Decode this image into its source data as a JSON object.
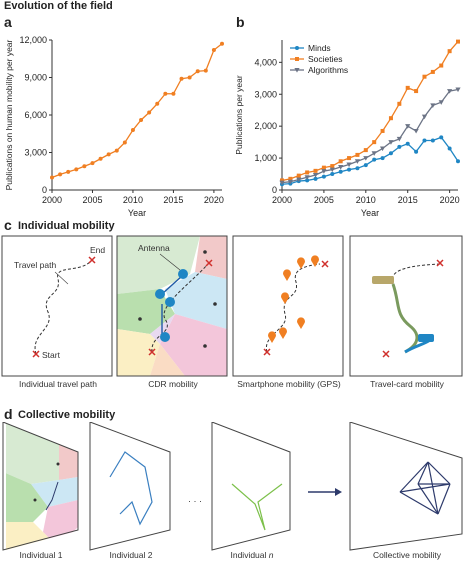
{
  "figure": {
    "title": "Evolution of the field",
    "panel_a": "a",
    "panel_b": "b",
    "panel_c": "c",
    "panel_d": "d",
    "section_c_heading": "Individual mobility",
    "section_d_heading": "Collective mobility"
  },
  "chart_data": [
    {
      "type": "line",
      "xlabel": "Year",
      "ylabel": "Publications on human mobility per year",
      "xlim": [
        2000,
        2021
      ],
      "ylim": [
        0,
        12000
      ],
      "xticks": [
        2000,
        2005,
        2010,
        2015,
        2020
      ],
      "yticks": [
        0,
        3000,
        6000,
        9000,
        12000
      ],
      "ytick_labels": [
        "0",
        "3,000",
        "6,000",
        "9,000",
        "12,000"
      ],
      "x": [
        2000,
        2001,
        2002,
        2003,
        2004,
        2005,
        2006,
        2007,
        2008,
        2009,
        2010,
        2011,
        2012,
        2013,
        2014,
        2015,
        2016,
        2017,
        2018,
        2019,
        2020,
        2021
      ],
      "series": [
        {
          "values": [
            1000,
            1250,
            1450,
            1650,
            1900,
            2150,
            2500,
            2850,
            3150,
            3800,
            4800,
            5600,
            6200,
            6900,
            7700,
            7700,
            8900,
            9000,
            9500,
            9550,
            11200,
            11700
          ],
          "color": "#f07f22"
        }
      ]
    },
    {
      "type": "line",
      "xlabel": "Year",
      "ylabel": "Publications per year",
      "xlim": [
        2000,
        2021
      ],
      "ylim": [
        0,
        4700
      ],
      "xticks": [
        2000,
        2005,
        2010,
        2015,
        2020
      ],
      "yticks": [
        0,
        1000,
        2000,
        3000,
        4000
      ],
      "ytick_labels": [
        "0",
        "1,000",
        "2,000",
        "3,000",
        "4,000"
      ],
      "legend_position": "top-left",
      "x": [
        2000,
        2001,
        2002,
        2003,
        2004,
        2005,
        2006,
        2007,
        2008,
        2009,
        2010,
        2011,
        2012,
        2013,
        2014,
        2015,
        2016,
        2017,
        2018,
        2019,
        2020,
        2021
      ],
      "series": [
        {
          "name": "Minds",
          "color": "#1f86c4",
          "marker": "circle",
          "values": [
            180,
            200,
            280,
            300,
            350,
            420,
            500,
            570,
            640,
            680,
            780,
            950,
            1000,
            1150,
            1350,
            1450,
            1200,
            1550,
            1550,
            1650,
            1300,
            900
          ]
        },
        {
          "name": "Societies",
          "color": "#f07f22",
          "marker": "square",
          "values": [
            300,
            350,
            450,
            550,
            600,
            700,
            750,
            900,
            1000,
            1100,
            1250,
            1500,
            1850,
            2250,
            2700,
            3200,
            3100,
            3550,
            3700,
            3900,
            4350,
            4650
          ]
        },
        {
          "name": "Algorithms",
          "color": "#6c7486",
          "marker": "triangle-down",
          "values": [
            230,
            260,
            330,
            400,
            470,
            590,
            640,
            720,
            800,
            900,
            1000,
            1150,
            1300,
            1500,
            1600,
            2000,
            1850,
            2300,
            2650,
            2750,
            3100,
            3150
          ]
        }
      ]
    }
  ],
  "panel_c": {
    "captions": [
      "Individual travel path",
      "CDR mobility",
      "Smartphone mobility (GPS)",
      "Travel-card mobility"
    ],
    "labels": {
      "travel_path": "Travel path",
      "end": "End",
      "start": "Start",
      "antenna": "Antenna"
    }
  },
  "panel_d": {
    "individual_prefix": "Individual",
    "captions": [
      "1",
      "2",
      "n"
    ],
    "collective_caption": "Collective mobility",
    "ellipsis": "· · ·"
  }
}
